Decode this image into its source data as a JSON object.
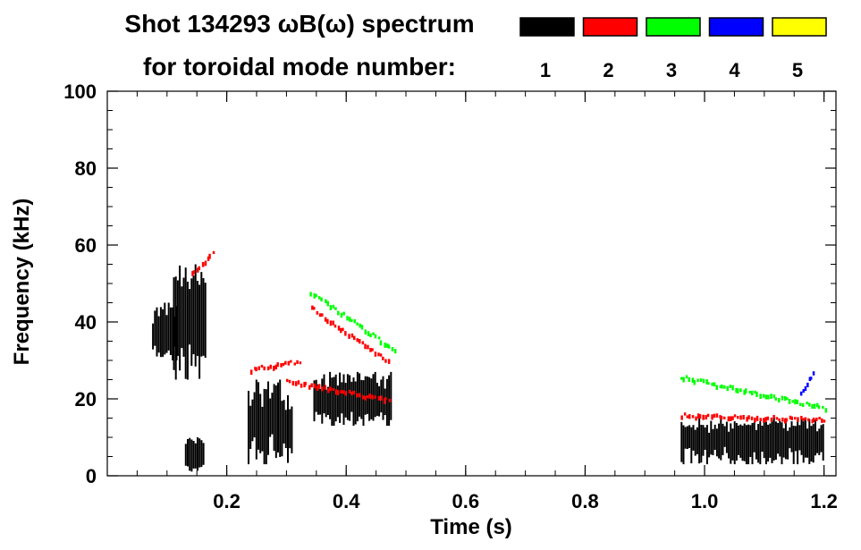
{
  "chart_data": {
    "type": "heatmap",
    "title_line1": "Shot 134293 ωB(ω) spectrum",
    "title_line2": "for toroidal mode number:",
    "xlabel": "Time (s)",
    "ylabel": "Frequency (kHz)",
    "xlim": [
      0.0,
      1.22
    ],
    "ylim": [
      0,
      100
    ],
    "x_ticks": [
      "0.2",
      "0.4",
      "0.6",
      "0.8",
      "1.0",
      "1.2"
    ],
    "x_tick_values": [
      0.2,
      0.4,
      0.6,
      0.8,
      1.0,
      1.2
    ],
    "y_ticks": [
      "0",
      "20",
      "40",
      "60",
      "80",
      "100"
    ],
    "y_tick_values": [
      0,
      20,
      40,
      60,
      80,
      100
    ],
    "legend": [
      {
        "label": "1",
        "color": "#000000"
      },
      {
        "label": "2",
        "color": "#ff0000"
      },
      {
        "label": "3",
        "color": "#00ff00"
      },
      {
        "label": "4",
        "color": "#0000ff"
      },
      {
        "label": "5",
        "color": "#ffff00"
      }
    ],
    "series": [
      {
        "mode": "1",
        "color": "#000000",
        "blobs": [
          {
            "t": [
              0.075,
              0.115
            ],
            "f": [
              30,
              45
            ]
          },
          {
            "t": [
              0.11,
              0.165
            ],
            "f": [
              25,
              55
            ]
          },
          {
            "t": [
              0.13,
              0.16
            ],
            "f": [
              1,
              10
            ]
          },
          {
            "t": [
              0.235,
              0.31
            ],
            "f": [
              3,
              25
            ]
          },
          {
            "t": [
              0.345,
              0.475
            ],
            "f": [
              13,
              27
            ]
          },
          {
            "t": [
              0.96,
              1.2
            ],
            "f": [
              3,
              15
            ]
          }
        ]
      },
      {
        "mode": "2",
        "color": "#ff0000",
        "tracks": [
          {
            "t": [
              0.14,
              0.175
            ],
            "f": [
              53,
              58
            ]
          },
          {
            "t": [
              0.24,
              0.32
            ],
            "f": [
              28,
              30
            ]
          },
          {
            "t": [
              0.34,
              0.47
            ],
            "f": [
              44,
              30
            ]
          },
          {
            "t": [
              0.3,
              0.47
            ],
            "f": [
              25,
              20
            ]
          },
          {
            "t": [
              0.96,
              1.2
            ],
            "f": [
              16,
              15
            ]
          }
        ]
      },
      {
        "mode": "3",
        "color": "#00ff00",
        "tracks": [
          {
            "t": [
              0.34,
              0.48
            ],
            "f": [
              48,
              33
            ]
          },
          {
            "t": [
              0.96,
              1.2
            ],
            "f": [
              26,
              18
            ]
          }
        ]
      },
      {
        "mode": "4",
        "color": "#0000ff",
        "tracks": [
          {
            "t": [
              1.16,
              1.18
            ],
            "f": [
              22,
              27
            ]
          }
        ]
      },
      {
        "mode": "5",
        "color": "#ffff00",
        "tracks": []
      }
    ]
  }
}
